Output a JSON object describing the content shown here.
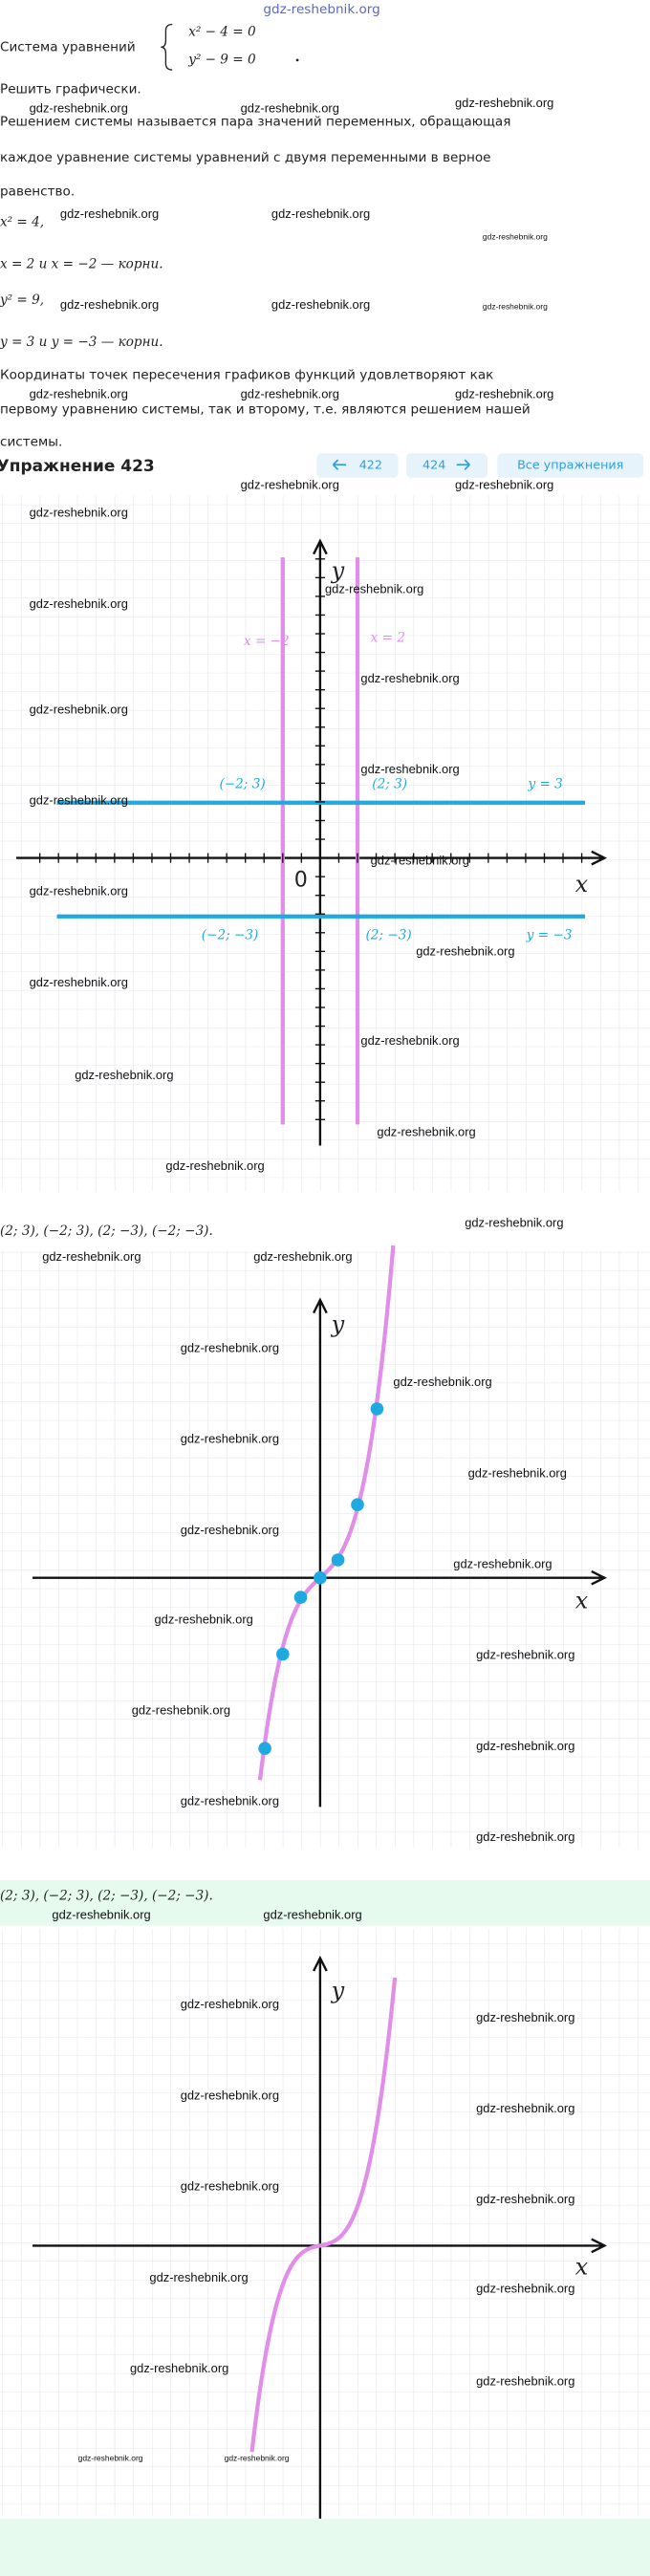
{
  "watermark": "gdz-reshebnik.org",
  "system": {
    "label": "Система уравнений",
    "equations": [
      "x² − 4 = 0",
      "y² − 9 = 0"
    ]
  },
  "lines": [
    "Решить графически.",
    "Решением системы называется пара значений переменных, обращающая",
    "каждое уравнение системы уравнений с двумя переменными в верное",
    "равенство.",
    "x² = 4,",
    "x = 2 и x = −2 — корни.",
    "y² = 9,",
    "y = 3 и y = −3 — корни.",
    "Координаты точек пересечения графиков функций удовлетворяют как",
    "первому уравнению системы, так и второму, т.е. являются решением нашей",
    "системы."
  ],
  "exercise": {
    "title": "Упражнение 423",
    "prev": "422",
    "next": "424",
    "all": "Все упражнения"
  },
  "graph1": {
    "x_axis": "x",
    "y_axis": "y",
    "origin": "0",
    "line_labels": [
      "x = −2",
      "x = 2",
      "y = 3",
      "y = −3"
    ],
    "point_labels": [
      "(−2; 3)",
      "(2; 3)",
      "(−2; −3)",
      "(2; −3)"
    ]
  },
  "answer1": "(2; 3), (−2; 3), (2; −3), (−2; −3).",
  "graph2": {
    "x_axis": "x",
    "y_axis": "y"
  },
  "answer2": "(2; 3), (−2; 3), (2; −3), (−2; −3).",
  "graph3": {
    "x_axis": "x",
    "y_axis": "y"
  }
}
